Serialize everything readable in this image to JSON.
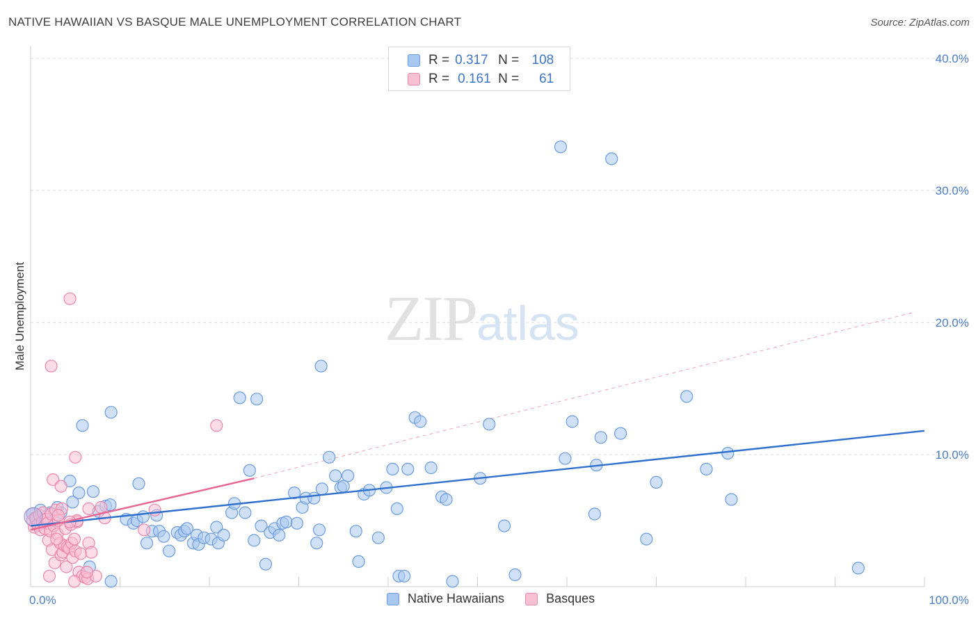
{
  "title": "NATIVE HAWAIIAN VS BASQUE MALE UNEMPLOYMENT CORRELATION CHART",
  "source": "Source: ZipAtlas.com",
  "watermark": {
    "zip": "ZIP",
    "atlas": "atlas"
  },
  "legend": {
    "rows": [
      {
        "r_label": "R =",
        "r_value": "0.317",
        "n_label": "N =",
        "n_value": "108",
        "color": "#a9c8ef",
        "border": "#6a9be0"
      },
      {
        "r_label": "R =",
        "r_value": "0.161",
        "n_label": "N =",
        "n_value": "61",
        "color": "#f9c0d3",
        "border": "#ec86a9"
      }
    ]
  },
  "chart_data": {
    "type": "scatter",
    "title": "NATIVE HAWAIIAN VS BASQUE MALE UNEMPLOYMENT CORRELATION CHART",
    "xlabel": "",
    "ylabel": "Male Unemployment",
    "xlim": [
      0,
      100
    ],
    "ylim": [
      0,
      40
    ],
    "x_tick_labels": [
      "0.0%",
      "100.0%"
    ],
    "y_tick_labels": [
      "10.0%",
      "20.0%",
      "30.0%",
      "40.0%"
    ],
    "y_ticks": [
      10,
      20,
      30,
      40
    ],
    "grid": true,
    "legend_position": "top-center",
    "series": [
      {
        "name": "Native Hawaiians",
        "color": "#6a9be0",
        "fill": "#a9c8ef",
        "trend": {
          "x": [
            0,
            100
          ],
          "y": [
            4.6,
            11.8
          ],
          "color": "#2f6fce"
        },
        "points": [
          [
            0.2,
            5.5
          ],
          [
            0.5,
            5.2
          ],
          [
            0.8,
            4.6
          ],
          [
            1.1,
            5.8
          ],
          [
            1.4,
            4.9
          ],
          [
            1.8,
            5.3
          ],
          [
            2.2,
            5.6
          ],
          [
            2.6,
            5.0
          ],
          [
            3.0,
            6.0
          ],
          [
            3.4,
            5.6
          ],
          [
            4.4,
            8.0
          ],
          [
            4.7,
            6.4
          ],
          [
            5.4,
            7.1
          ],
          [
            5.8,
            12.2
          ],
          [
            6.6,
            1.5
          ],
          [
            7.0,
            7.2
          ],
          [
            7.6,
            5.7
          ],
          [
            8.4,
            6.1
          ],
          [
            8.9,
            6.2
          ],
          [
            9.0,
            0.4
          ],
          [
            9.0,
            13.2
          ],
          [
            10.7,
            5.1
          ],
          [
            11.5,
            4.8
          ],
          [
            11.9,
            5.0
          ],
          [
            12.1,
            7.8
          ],
          [
            12.6,
            5.3
          ],
          [
            13.0,
            3.3
          ],
          [
            13.6,
            4.2
          ],
          [
            14.1,
            5.4
          ],
          [
            14.4,
            4.2
          ],
          [
            14.9,
            3.8
          ],
          [
            15.5,
            2.7
          ],
          [
            16.4,
            4.1
          ],
          [
            16.8,
            3.9
          ],
          [
            17.2,
            4.2
          ],
          [
            17.5,
            4.4
          ],
          [
            18.2,
            3.3
          ],
          [
            18.6,
            3.9
          ],
          [
            18.8,
            3.2
          ],
          [
            19.4,
            3.7
          ],
          [
            20.2,
            3.6
          ],
          [
            20.8,
            4.5
          ],
          [
            21.0,
            3.3
          ],
          [
            21.6,
            3.9
          ],
          [
            22.5,
            5.6
          ],
          [
            22.8,
            6.3
          ],
          [
            23.4,
            14.3
          ],
          [
            24.0,
            5.6
          ],
          [
            24.5,
            8.8
          ],
          [
            25.0,
            3.5
          ],
          [
            25.3,
            14.2
          ],
          [
            25.8,
            4.6
          ],
          [
            26.3,
            1.7
          ],
          [
            26.8,
            4.1
          ],
          [
            27.3,
            4.4
          ],
          [
            27.8,
            3.9
          ],
          [
            28.2,
            4.8
          ],
          [
            28.6,
            4.9
          ],
          [
            29.5,
            7.1
          ],
          [
            29.8,
            4.8
          ],
          [
            30.4,
            6.0
          ],
          [
            30.8,
            6.7
          ],
          [
            31.7,
            6.7
          ],
          [
            32.0,
            3.3
          ],
          [
            32.3,
            4.3
          ],
          [
            32.5,
            16.7
          ],
          [
            32.6,
            7.4
          ],
          [
            33.4,
            9.8
          ],
          [
            34.1,
            8.4
          ],
          [
            34.7,
            7.5
          ],
          [
            35.0,
            7.6
          ],
          [
            35.5,
            8.4
          ],
          [
            36.4,
            4.2
          ],
          [
            36.7,
            1.9
          ],
          [
            37.3,
            7.0
          ],
          [
            37.9,
            7.3
          ],
          [
            38.9,
            3.7
          ],
          [
            39.8,
            7.5
          ],
          [
            40.5,
            8.9
          ],
          [
            41.0,
            5.9
          ],
          [
            41.2,
            0.8
          ],
          [
            41.8,
            0.8
          ],
          [
            42.2,
            8.9
          ],
          [
            43.0,
            12.8
          ],
          [
            43.6,
            12.5
          ],
          [
            44.8,
            9.0
          ],
          [
            46.0,
            6.8
          ],
          [
            46.5,
            6.6
          ],
          [
            47.2,
            0.4
          ],
          [
            50.3,
            8.2
          ],
          [
            51.3,
            12.3
          ],
          [
            53.0,
            4.6
          ],
          [
            54.2,
            0.9
          ],
          [
            59.3,
            33.3
          ],
          [
            59.8,
            9.7
          ],
          [
            60.6,
            12.5
          ],
          [
            63.1,
            5.5
          ],
          [
            63.3,
            9.2
          ],
          [
            63.8,
            11.3
          ],
          [
            65.0,
            32.4
          ],
          [
            66.0,
            11.6
          ],
          [
            68.9,
            3.6
          ],
          [
            70.0,
            7.9
          ],
          [
            73.4,
            14.4
          ],
          [
            75.6,
            8.9
          ],
          [
            78.0,
            10.1
          ],
          [
            78.4,
            6.6
          ],
          [
            92.6,
            1.4
          ]
        ]
      },
      {
        "name": "Basques",
        "color": "#ec86a9",
        "fill": "#f9c0d3",
        "trend": {
          "x": [
            0,
            25.0
          ],
          "y": [
            4.3,
            8.2
          ],
          "color": "#e86591"
        },
        "trend_extended": {
          "x": [
            25.0,
            99.0
          ],
          "y": [
            8.2,
            20.8
          ]
        },
        "points": [
          [
            0.2,
            5.0
          ],
          [
            0.4,
            4.5
          ],
          [
            0.6,
            5.2
          ],
          [
            0.8,
            4.7
          ],
          [
            1.0,
            5.4
          ],
          [
            1.1,
            4.3
          ],
          [
            1.3,
            4.9
          ],
          [
            1.4,
            5.6
          ],
          [
            1.6,
            4.4
          ],
          [
            1.7,
            5.1
          ],
          [
            1.9,
            4.8
          ],
          [
            2.0,
            3.5
          ],
          [
            2.2,
            4.2
          ],
          [
            2.3,
            5.5
          ],
          [
            2.4,
            2.8
          ],
          [
            2.6,
            4.6
          ],
          [
            2.7,
            1.8
          ],
          [
            2.8,
            5.8
          ],
          [
            3.0,
            4.0
          ],
          [
            3.1,
            5.0
          ],
          [
            3.3,
            3.3
          ],
          [
            3.4,
            2.4
          ],
          [
            3.5,
            5.9
          ],
          [
            3.6,
            2.6
          ],
          [
            3.8,
            3.1
          ],
          [
            3.9,
            4.4
          ],
          [
            4.0,
            1.5
          ],
          [
            4.1,
            3.0
          ],
          [
            4.3,
            2.9
          ],
          [
            4.5,
            4.7
          ],
          [
            4.6,
            3.3
          ],
          [
            4.7,
            2.2
          ],
          [
            4.9,
            3.6
          ],
          [
            5.0,
            2.7
          ],
          [
            5.2,
            4.9
          ],
          [
            5.4,
            1.1
          ],
          [
            5.6,
            2.5
          ],
          [
            5.8,
            0.8
          ],
          [
            6.1,
            0.7
          ],
          [
            6.5,
            3.3
          ],
          [
            6.8,
            2.6
          ],
          [
            5.2,
            5.0
          ],
          [
            4.4,
            4.9
          ],
          [
            2.5,
            8.1
          ],
          [
            3.1,
            5.4
          ],
          [
            3.4,
            7.6
          ],
          [
            2.9,
            3.6
          ],
          [
            6.4,
            0.6
          ],
          [
            7.3,
            0.8
          ],
          [
            5.0,
            9.8
          ],
          [
            2.3,
            16.7
          ],
          [
            4.4,
            21.8
          ],
          [
            20.8,
            12.2
          ],
          [
            6.3,
            1.1
          ],
          [
            12.7,
            4.3
          ],
          [
            4.9,
            0.4
          ],
          [
            7.9,
            6.0
          ],
          [
            13.9,
            5.8
          ],
          [
            8.3,
            5.2
          ],
          [
            6.5,
            5.9
          ],
          [
            2.1,
            0.8
          ]
        ]
      }
    ]
  }
}
